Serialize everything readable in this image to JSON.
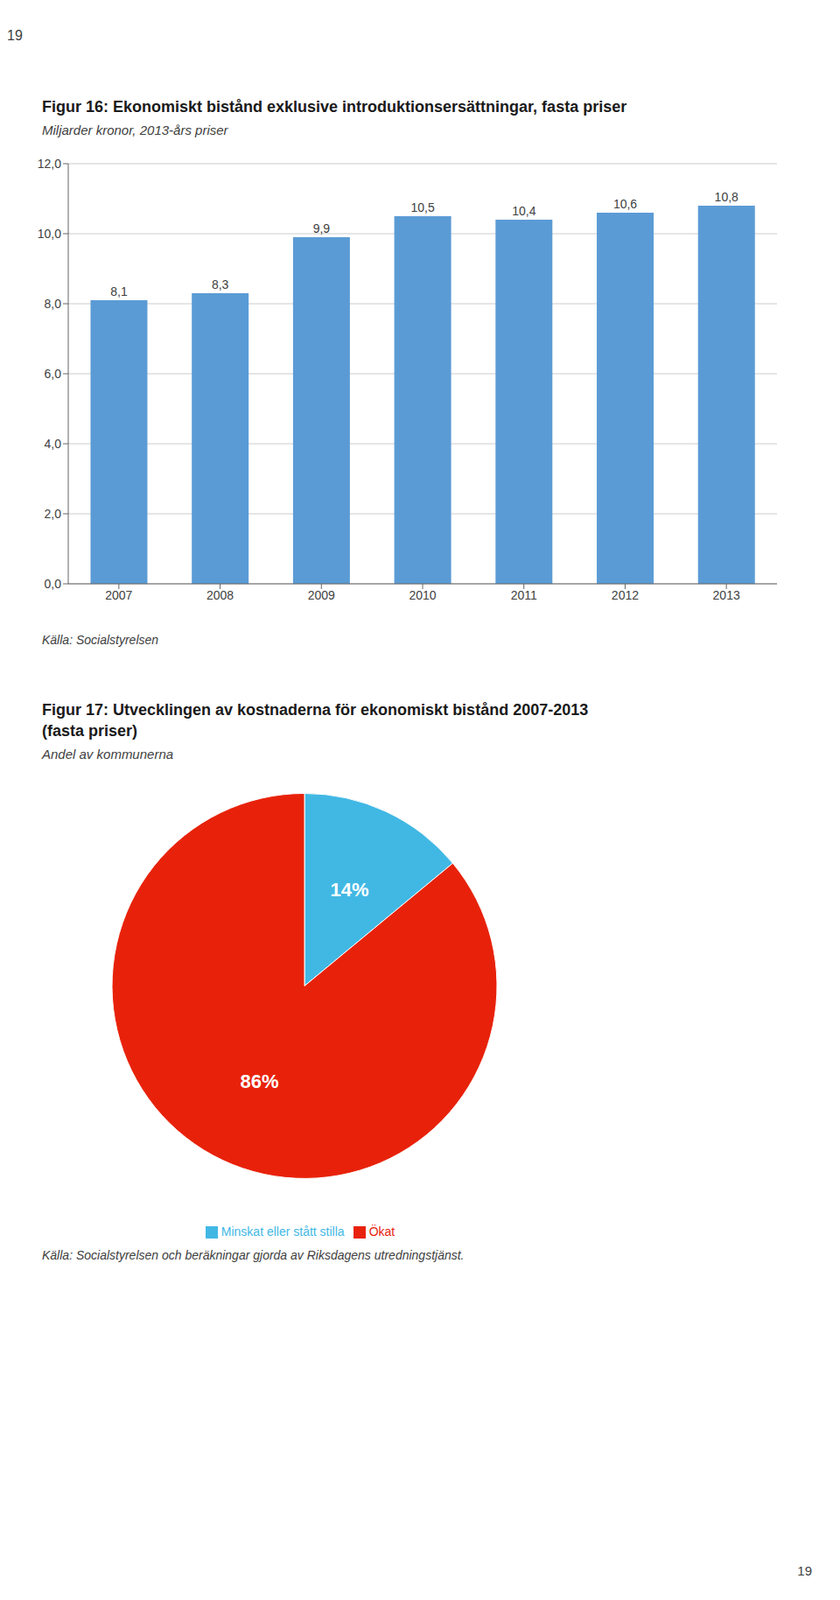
{
  "chart_data": [
    {
      "type": "bar",
      "title": "Figur 16: Ekonomiskt bistånd exklusive introduktionsersättningar, fasta priser",
      "subtitle": "Miljarder kronor, 2013-års priser",
      "annotations": [
        "19",
        "Källa: Socialstyrelsen"
      ],
      "categories": [
        "2007",
        "2008",
        "2009",
        "2010",
        "2011",
        "2012",
        "2013"
      ],
      "values": [
        8.1,
        8.3,
        9.9,
        10.5,
        10.4,
        10.6,
        10.8
      ],
      "value_labels": [
        "8,1",
        "8,3",
        "9,9",
        "10,5",
        "10,4",
        "10,6",
        "10,8"
      ],
      "data_labels": true,
      "color": "#5B9BD5",
      "ylim": [
        0,
        12.0
      ],
      "yticks": [
        {
          "value": 0.0,
          "label": "0,0"
        },
        {
          "value": 2.0,
          "label": "2,0"
        },
        {
          "value": 4.0,
          "label": "4,0"
        },
        {
          "value": 6.0,
          "label": "6,0"
        },
        {
          "value": 8.0,
          "label": "8,0"
        },
        {
          "value": 10.0,
          "label": "10,0"
        },
        {
          "value": 12.0,
          "label": "12,0"
        }
      ],
      "grid": true
    },
    {
      "type": "pie",
      "title": "Figur 17: Utvecklingen av kostnaderna för ekonomiskt bistånd 2007-2013\n(fasta priser)",
      "subtitle": "Andel av kommunerna",
      "annotations": [
        "Källa: Socialstyrelsen och beräkningar gjorda av Riksdagens utredningstjänst.",
        "19"
      ],
      "categories": [
        "Minskat eller stått stilla",
        "Ökat"
      ],
      "values": [
        14,
        86
      ],
      "value_labels": [
        "14%",
        "86%"
      ],
      "data_labels": true,
      "colors": [
        "#41B8E4",
        "#E8220A"
      ],
      "legend": "bottom"
    }
  ]
}
